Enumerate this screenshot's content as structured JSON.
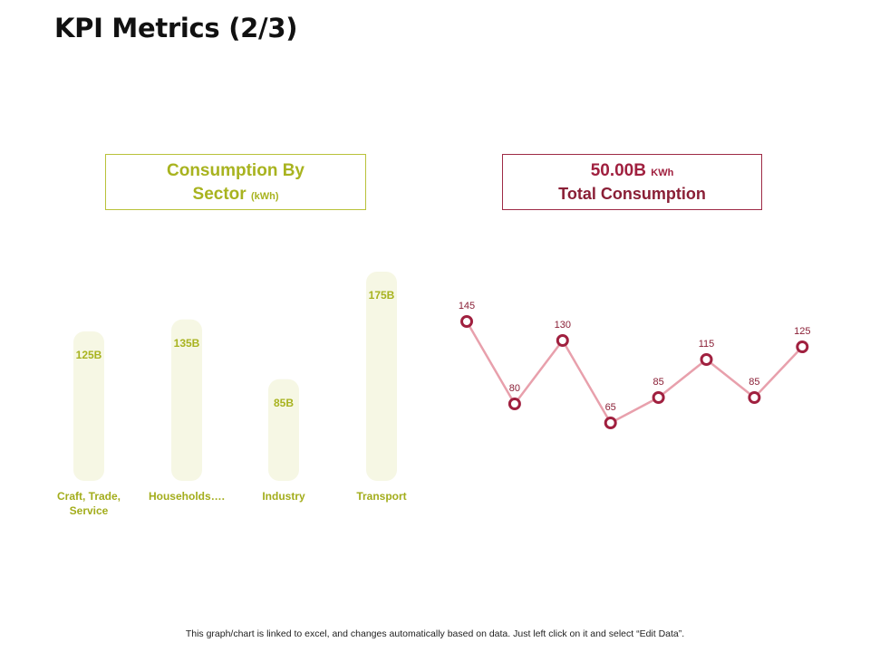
{
  "title": "KPI Metrics (2/3)",
  "left_box": {
    "line1": "Consumption By",
    "line2": "Sector",
    "unit": "(kWh)"
  },
  "right_box": {
    "value": "50.00B",
    "unit": "KWh",
    "label": "Total Consumption"
  },
  "footer": "This graph/chart is linked to excel,  and changes automatically based on data. Just left click on it and select “Edit Data”.",
  "colors": {
    "bar_fill": "#f6f7e4",
    "bar_label": "#a8b31f",
    "category_label": "#a3ad1c",
    "line": "#e8a0ac",
    "marker": "#a0203f",
    "point_label": "#8a1f36"
  },
  "chart_data": [
    {
      "type": "bar",
      "categories": [
        "Craft, Trade, Service",
        "Households….",
        "Industry",
        "Transport"
      ],
      "values": [
        125,
        135,
        85,
        175
      ],
      "data_labels": [
        "125B",
        "135B",
        "85B",
        "175B"
      ],
      "ylim": [
        0,
        180
      ]
    },
    {
      "type": "line",
      "values": [
        145,
        80,
        130,
        65,
        85,
        115,
        85,
        125
      ],
      "data_labels": [
        "145",
        "80",
        "130",
        "65",
        "85",
        "115",
        "85",
        "125"
      ],
      "ylim": [
        0,
        150
      ]
    }
  ]
}
